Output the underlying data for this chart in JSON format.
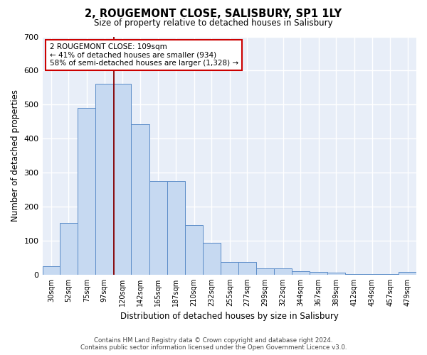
{
  "title": "2, ROUGEMONT CLOSE, SALISBURY, SP1 1LY",
  "subtitle": "Size of property relative to detached houses in Salisbury",
  "xlabel": "Distribution of detached houses by size in Salisbury",
  "ylabel": "Number of detached properties",
  "categories": [
    "30sqm",
    "52sqm",
    "75sqm",
    "97sqm",
    "120sqm",
    "142sqm",
    "165sqm",
    "187sqm",
    "210sqm",
    "232sqm",
    "255sqm",
    "277sqm",
    "299sqm",
    "322sqm",
    "344sqm",
    "367sqm",
    "389sqm",
    "412sqm",
    "434sqm",
    "457sqm",
    "479sqm"
  ],
  "bar_values": [
    25,
    153,
    490,
    562,
    562,
    442,
    275,
    275,
    145,
    93,
    37,
    37,
    18,
    18,
    11,
    7,
    5,
    2,
    2,
    2,
    7
  ],
  "bar_color": "#c6d9f1",
  "bar_edge_color": "#5b8cc8",
  "vline_x": 109,
  "vline_color": "#8B0000",
  "annotation_text": "2 ROUGEMONT CLOSE: 109sqm\n← 41% of detached houses are smaller (934)\n58% of semi-detached houses are larger (1,328) →",
  "annotation_box_color": "white",
  "annotation_box_edge": "#cc0000",
  "ylim": [
    0,
    700
  ],
  "yticks": [
    0,
    100,
    200,
    300,
    400,
    500,
    600,
    700
  ],
  "background_color": "#e8eef8",
  "grid_color": "white",
  "footer": "Contains HM Land Registry data © Crown copyright and database right 2024.\nContains public sector information licensed under the Open Government Licence v3.0."
}
